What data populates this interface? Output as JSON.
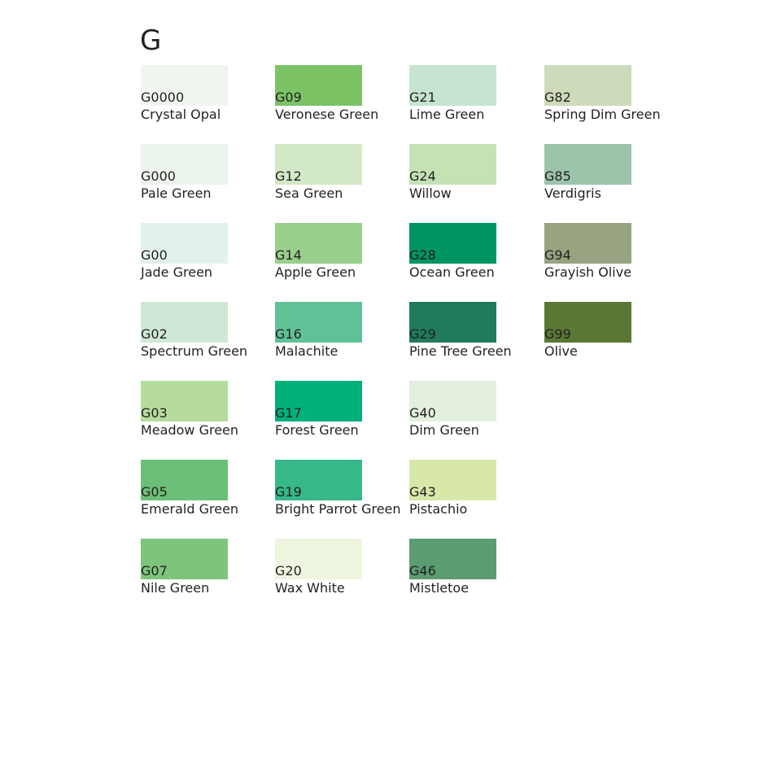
{
  "group": {
    "title": "G"
  },
  "columns": [
    {
      "swatches": [
        {
          "code": "G0000",
          "name": "Crystal Opal",
          "color": "#eff6f0"
        },
        {
          "code": "G000",
          "name": "Pale Green",
          "color": "#eaf4ec"
        },
        {
          "code": "G00",
          "name": "Jade Green",
          "color": "#e2f1eb"
        },
        {
          "code": "G02",
          "name": "Spectrum Green",
          "color": "#cfe8d6"
        },
        {
          "code": "G03",
          "name": "Meadow Green",
          "color": "#b6dc9d"
        },
        {
          "code": "G05",
          "name": "Emerald Green",
          "color": "#6bbf76"
        },
        {
          "code": "G07",
          "name": "Nile Green",
          "color": "#7ec47c"
        }
      ]
    },
    {
      "swatches": [
        {
          "code": "G09",
          "name": "Veronese Green",
          "color": "#7cc366"
        },
        {
          "code": "G12",
          "name": "Sea Green",
          "color": "#d3e9c6"
        },
        {
          "code": "G14",
          "name": "Apple Green",
          "color": "#98cf8c"
        },
        {
          "code": "G16",
          "name": "Malachite",
          "color": "#60c196"
        },
        {
          "code": "G17",
          "name": "Forest Green",
          "color": "#00b07b"
        },
        {
          "code": "G19",
          "name": "Bright Parrot Green",
          "color": "#36b888"
        },
        {
          "code": "G20",
          "name": "Wax White",
          "color": "#edf5df"
        }
      ]
    },
    {
      "swatches": [
        {
          "code": "G21",
          "name": "Lime Green",
          "color": "#c5e5d1"
        },
        {
          "code": "G24",
          "name": "Willow",
          "color": "#c5e2b5"
        },
        {
          "code": "G28",
          "name": "Ocean Green",
          "color": "#009462"
        },
        {
          "code": "G29",
          "name": "Pine Tree Green",
          "color": "#207b5b"
        },
        {
          "code": "G40",
          "name": "Dim Green",
          "color": "#e3f0df"
        },
        {
          "code": "G43",
          "name": "Pistachio",
          "color": "#d8e8a9"
        },
        {
          "code": "G46",
          "name": "Mistletoe",
          "color": "#5b9c71"
        }
      ]
    },
    {
      "swatches": [
        {
          "code": "G82",
          "name": "Spring Dim Green",
          "color": "#cedbbb"
        },
        {
          "code": "G85",
          "name": "Verdigris",
          "color": "#9cc4aa"
        },
        {
          "code": "G94",
          "name": "Grayish Olive",
          "color": "#98a382"
        },
        {
          "code": "G99",
          "name": "Olive",
          "color": "#5a7834"
        }
      ]
    }
  ]
}
